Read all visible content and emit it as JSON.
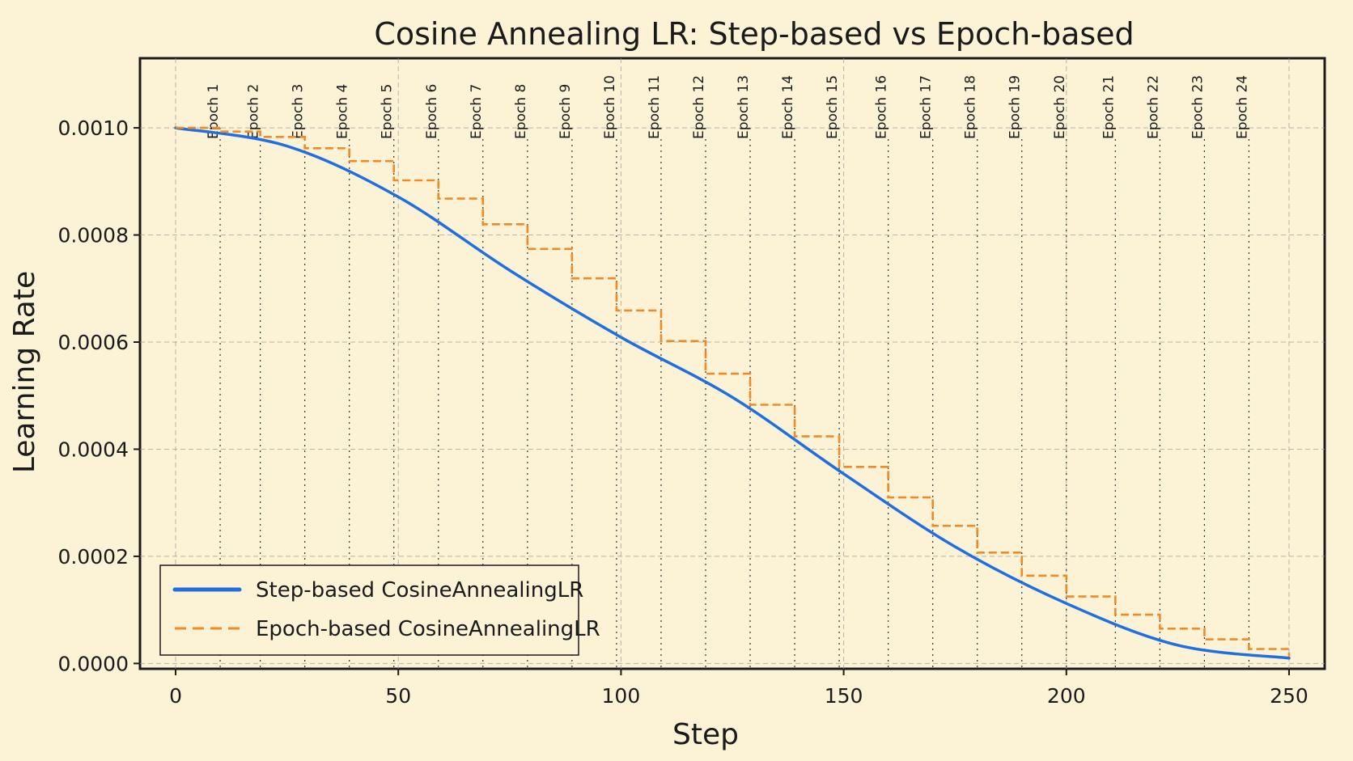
{
  "chart_data": {
    "type": "line",
    "title": "Cosine Annealing LR: Step-based vs Epoch-based",
    "xlabel": "Step",
    "ylabel": "Learning Rate",
    "xlim": [
      -8,
      258
    ],
    "ylim": [
      -1e-05,
      0.00113
    ],
    "xticks": [
      0,
      50,
      100,
      150,
      200,
      250
    ],
    "xtick_labels": [
      "0",
      "50",
      "100",
      "150",
      "200",
      "250"
    ],
    "yticks": [
      0.0,
      0.0002,
      0.0004,
      0.0006,
      0.0008,
      0.001
    ],
    "ytick_labels": [
      "0.0000",
      "0.0002",
      "0.0004",
      "0.0006",
      "0.0008",
      "0.0010"
    ],
    "grid": true,
    "legend": "lower-left",
    "total_steps": 250,
    "lr_max": 0.001,
    "lr_min": 1e-05,
    "epoch_boundaries": [
      {
        "x": 10,
        "label": "Epoch 1"
      },
      {
        "x": 19,
        "label": "Epoch 2"
      },
      {
        "x": 29,
        "label": "Epoch 3"
      },
      {
        "x": 39,
        "label": "Epoch 4"
      },
      {
        "x": 49,
        "label": "Epoch 5"
      },
      {
        "x": 59,
        "label": "Epoch 6"
      },
      {
        "x": 69,
        "label": "Epoch 7"
      },
      {
        "x": 79,
        "label": "Epoch 8"
      },
      {
        "x": 89,
        "label": "Epoch 9"
      },
      {
        "x": 99,
        "label": "Epoch 10"
      },
      {
        "x": 109,
        "label": "Epoch 11"
      },
      {
        "x": 119,
        "label": "Epoch 12"
      },
      {
        "x": 129,
        "label": "Epoch 13"
      },
      {
        "x": 139,
        "label": "Epoch 14"
      },
      {
        "x": 149,
        "label": "Epoch 15"
      },
      {
        "x": 160,
        "label": "Epoch 16"
      },
      {
        "x": 170,
        "label": "Epoch 17"
      },
      {
        "x": 180,
        "label": "Epoch 18"
      },
      {
        "x": 190,
        "label": "Epoch 19"
      },
      {
        "x": 200,
        "label": "Epoch 20"
      },
      {
        "x": 211,
        "label": "Epoch 21"
      },
      {
        "x": 221,
        "label": "Epoch 22"
      },
      {
        "x": 231,
        "label": "Epoch 23"
      },
      {
        "x": 241,
        "label": "Epoch 24"
      }
    ],
    "series": [
      {
        "name": "Step-based CosineAnnealingLR",
        "style": "solid",
        "color": "#1f6fe0",
        "x": [
          0,
          25,
          50,
          75,
          100,
          125,
          150,
          175,
          200,
          225,
          250
        ],
        "y": [
          0.001,
          0.000966,
          0.000871,
          0.000734,
          0.000609,
          0.000497,
          0.000354,
          0.000218,
          0.000112,
          3.4e-05,
          1e-05
        ]
      },
      {
        "name": "Epoch-based CosineAnnealingLR",
        "style": "dashed",
        "color": "#f08a24",
        "step_x": [
          0,
          10,
          19,
          29,
          39,
          49,
          59,
          69,
          79,
          89,
          99,
          109,
          119,
          129,
          139,
          149,
          160,
          170,
          180,
          190,
          200,
          211,
          221,
          231,
          241,
          250
        ],
        "step_y": [
          0.001,
          0.000993,
          0.000983,
          0.000962,
          0.000938,
          0.000902,
          0.000868,
          0.00082,
          0.000774,
          0.000719,
          0.000659,
          0.000602,
          0.000541,
          0.000483,
          0.000424,
          0.000367,
          0.00031,
          0.000257,
          0.000207,
          0.000164,
          0.000125,
          9.1e-05,
          6.5e-05,
          4.5e-05,
          2.7e-05,
          1.3e-05
        ]
      }
    ]
  }
}
